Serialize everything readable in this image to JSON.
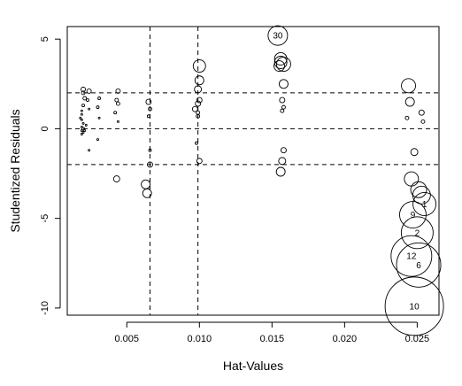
{
  "chart_data": {
    "type": "scatter",
    "title": "",
    "xlabel": "Hat-Values",
    "ylabel": "Studentized Residuals",
    "xlim": [
      0.0009,
      0.0265
    ],
    "ylim": [
      -10.4,
      5.7
    ],
    "xticks": [
      0.005,
      0.01,
      0.015,
      0.02,
      0.025
    ],
    "xtick_labels": [
      "0.005",
      "0.010",
      "0.015",
      "0.020",
      "0.025"
    ],
    "yticks": [
      5,
      0,
      -5,
      -10
    ],
    "ytick_labels": [
      "5",
      "0",
      "-5",
      "-10"
    ],
    "reference_lines": {
      "vertical": [
        0.0066,
        0.0099
      ],
      "horizontal": [
        2,
        0,
        -2
      ]
    },
    "points": [
      {
        "x": 0.0154,
        "y": 5.2,
        "r": 11,
        "label": "30"
      },
      {
        "x": 0.0156,
        "y": 3.9,
        "r": 7
      },
      {
        "x": 0.0156,
        "y": 3.7,
        "r": 7
      },
      {
        "x": 0.0158,
        "y": 3.6,
        "r": 8
      },
      {
        "x": 0.0155,
        "y": 3.5,
        "r": 6
      },
      {
        "x": 0.0158,
        "y": 2.5,
        "r": 5
      },
      {
        "x": 0.0157,
        "y": 1.6,
        "r": 3
      },
      {
        "x": 0.0158,
        "y": 1.2,
        "r": 2
      },
      {
        "x": 0.0157,
        "y": 1.0,
        "r": 2
      },
      {
        "x": 0.0158,
        "y": -1.2,
        "r": 3
      },
      {
        "x": 0.0157,
        "y": -1.8,
        "r": 4
      },
      {
        "x": 0.0156,
        "y": -2.4,
        "r": 5
      },
      {
        "x": 0.01,
        "y": 3.5,
        "r": 7
      },
      {
        "x": 0.01,
        "y": 2.7,
        "r": 5
      },
      {
        "x": 0.0099,
        "y": 2.2,
        "r": 4
      },
      {
        "x": 0.01,
        "y": 1.6,
        "r": 3
      },
      {
        "x": 0.0099,
        "y": 1.4,
        "r": 3
      },
      {
        "x": 0.0097,
        "y": 1.1,
        "r": 3
      },
      {
        "x": 0.0099,
        "y": 0.9,
        "r": 2
      },
      {
        "x": 0.0099,
        "y": 0.7,
        "r": 2
      },
      {
        "x": 0.0098,
        "y": -0.8,
        "r": 1.5
      },
      {
        "x": 0.01,
        "y": -1.8,
        "r": 3
      },
      {
        "x": 0.0065,
        "y": 1.5,
        "r": 3
      },
      {
        "x": 0.0066,
        "y": 1.1,
        "r": 2
      },
      {
        "x": 0.0065,
        "y": 0.7,
        "r": 1.5
      },
      {
        "x": 0.0066,
        "y": -1.2,
        "r": 1.5
      },
      {
        "x": 0.0066,
        "y": -2.0,
        "r": 3
      },
      {
        "x": 0.0063,
        "y": -3.1,
        "r": 5
      },
      {
        "x": 0.0064,
        "y": -3.6,
        "r": 5
      },
      {
        "x": 0.0044,
        "y": 2.1,
        "r": 2.5
      },
      {
        "x": 0.0043,
        "y": 1.6,
        "r": 2
      },
      {
        "x": 0.0044,
        "y": 1.4,
        "r": 2
      },
      {
        "x": 0.0042,
        "y": 0.9,
        "r": 1.5
      },
      {
        "x": 0.0044,
        "y": 0.4,
        "r": 1
      },
      {
        "x": 0.0043,
        "y": -2.8,
        "r": 3.5
      },
      {
        "x": 0.0031,
        "y": 1.7,
        "r": 1.5
      },
      {
        "x": 0.003,
        "y": 1.2,
        "r": 1.5
      },
      {
        "x": 0.0031,
        "y": 0.6,
        "r": 1
      },
      {
        "x": 0.003,
        "y": -0.6,
        "r": 1
      },
      {
        "x": 0.0024,
        "y": 2.1,
        "r": 2.5
      },
      {
        "x": 0.0023,
        "y": 1.6,
        "r": 1.5
      },
      {
        "x": 0.0024,
        "y": 1.1,
        "r": 1
      },
      {
        "x": 0.0024,
        "y": -1.2,
        "r": 1
      },
      {
        "x": 0.002,
        "y": 2.2,
        "r": 2.5
      },
      {
        "x": 0.002,
        "y": 2.0,
        "r": 2
      },
      {
        "x": 0.0021,
        "y": 1.7,
        "r": 2
      },
      {
        "x": 0.002,
        "y": 1.3,
        "r": 1.5
      },
      {
        "x": 0.0019,
        "y": 1.0,
        "r": 1
      },
      {
        "x": 0.0019,
        "y": 0.8,
        "r": 1
      },
      {
        "x": 0.0019,
        "y": 0.5,
        "r": 1
      },
      {
        "x": 0.002,
        "y": 0.3,
        "r": 1
      },
      {
        "x": 0.0019,
        "y": 0.1,
        "r": 1
      },
      {
        "x": 0.002,
        "y": 0.0,
        "r": 1.5
      },
      {
        "x": 0.0019,
        "y": -0.1,
        "r": 1
      },
      {
        "x": 0.002,
        "y": -0.2,
        "r": 1
      },
      {
        "x": 0.0019,
        "y": -0.3,
        "r": 1
      },
      {
        "x": 0.0021,
        "y": -0.1,
        "r": 1
      },
      {
        "x": 0.0022,
        "y": 0.2,
        "r": 1
      },
      {
        "x": 0.0018,
        "y": 0.6,
        "r": 1
      },
      {
        "x": 0.0244,
        "y": 2.4,
        "r": 8
      },
      {
        "x": 0.0245,
        "y": 1.5,
        "r": 5
      },
      {
        "x": 0.0243,
        "y": 0.6,
        "r": 2
      },
      {
        "x": 0.0253,
        "y": 0.9,
        "r": 3
      },
      {
        "x": 0.0254,
        "y": 0.4,
        "r": 2
      },
      {
        "x": 0.0248,
        "y": -1.3,
        "r": 4
      },
      {
        "x": 0.0246,
        "y": -2.8,
        "r": 8
      },
      {
        "x": 0.0251,
        "y": -3.4,
        "r": 9
      },
      {
        "x": 0.0253,
        "y": -3.7,
        "r": 10
      },
      {
        "x": 0.0255,
        "y": -4.2,
        "r": 13,
        "label": "1"
      },
      {
        "x": 0.0247,
        "y": -4.8,
        "r": 15,
        "label": "9"
      },
      {
        "x": 0.025,
        "y": -5.8,
        "r": 18,
        "label": "2"
      },
      {
        "x": 0.0246,
        "y": -7.1,
        "r": 23,
        "label": "12"
      },
      {
        "x": 0.0251,
        "y": -7.6,
        "r": 25,
        "label": "6"
      },
      {
        "x": 0.0248,
        "y": -9.9,
        "r": 33,
        "label": "10"
      }
    ]
  }
}
